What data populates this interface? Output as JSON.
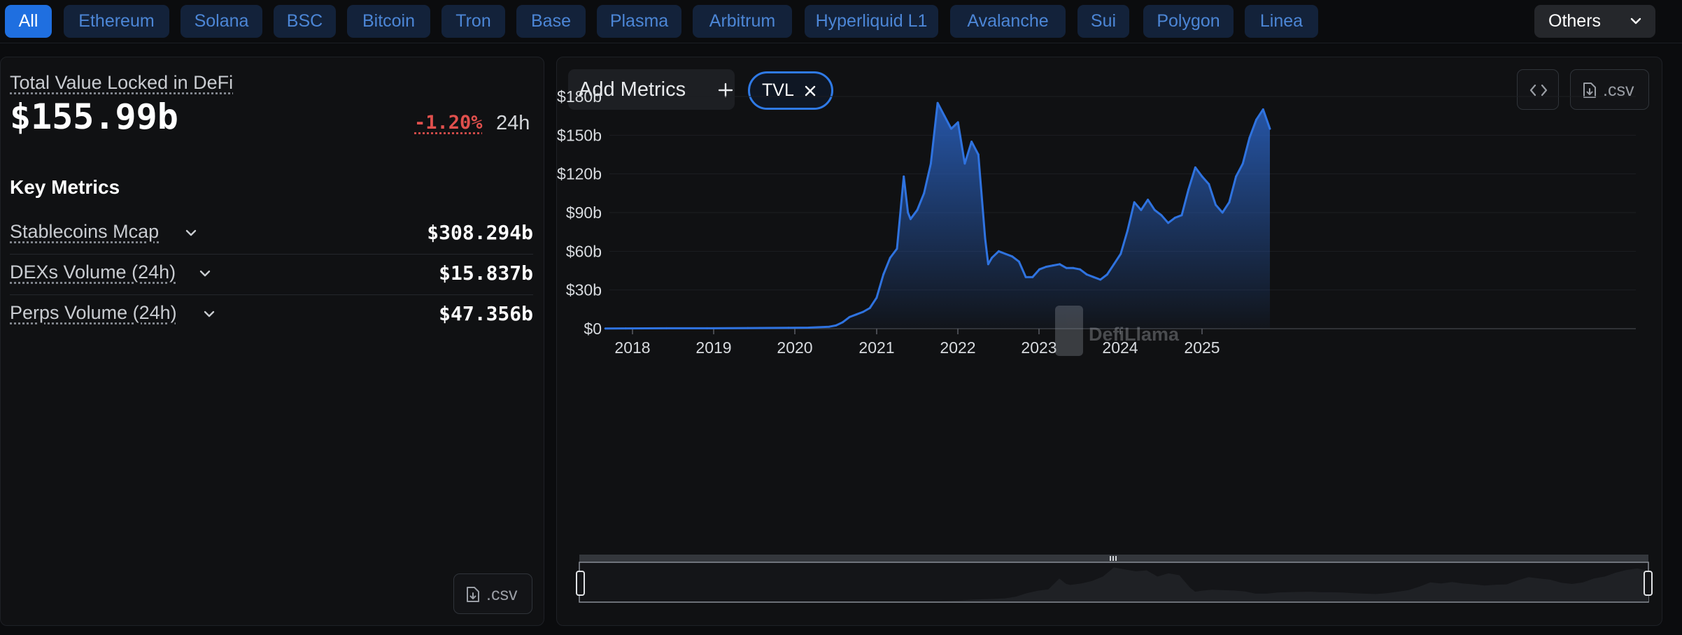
{
  "chain_tabs": [
    {
      "label": "All",
      "active": true
    },
    {
      "label": "Ethereum"
    },
    {
      "label": "Solana"
    },
    {
      "label": "BSC"
    },
    {
      "label": "Bitcoin"
    },
    {
      "label": "Tron"
    },
    {
      "label": "Base"
    },
    {
      "label": "Plasma"
    },
    {
      "label": "Arbitrum"
    },
    {
      "label": "Hyperliquid L1"
    },
    {
      "label": "Avalanche"
    },
    {
      "label": "Sui"
    },
    {
      "label": "Polygon"
    },
    {
      "label": "Linea"
    }
  ],
  "others_label": "Others",
  "summary": {
    "title": "Total Value Locked in DeFi",
    "value": "$155.99b",
    "change": "-1.20%",
    "period": "24h",
    "key_metrics_heading": "Key Metrics",
    "metrics": [
      {
        "label": "Stablecoins Mcap",
        "value": "$308.294b"
      },
      {
        "label": "DEXs Volume (24h)",
        "value": "$15.837b"
      },
      {
        "label": "Perps Volume (24h)",
        "value": "$47.356b"
      }
    ],
    "csv_label": ".csv"
  },
  "chart_toolbar": {
    "add_metrics_label": "Add Metrics",
    "chip_label": "TVL",
    "csv_label": ".csv"
  },
  "colors": {
    "accent": "#1f6fe0",
    "line": "#2f73e0",
    "negative": "#e0504d"
  },
  "chart_data": {
    "type": "area",
    "series": [
      {
        "name": "TVL"
      }
    ],
    "watermark": "DefiLlama",
    "x": [
      "2017-09",
      "2017-12",
      "2018-06",
      "2018-12",
      "2019-06",
      "2019-12",
      "2020-03",
      "2020-06",
      "2020-07",
      "2020-08",
      "2020-09",
      "2020-10",
      "2020-11",
      "2020-12",
      "2021-01",
      "2021-02",
      "2021-03",
      "2021-04",
      "2021-05",
      "2021-05-20",
      "2021-06",
      "2021-07",
      "2021-08",
      "2021-09",
      "2021-10",
      "2021-11",
      "2021-12",
      "2022-01",
      "2022-02",
      "2022-03",
      "2022-04",
      "2022-05",
      "2022-05-15",
      "2022-06",
      "2022-07",
      "2022-08",
      "2022-09",
      "2022-10",
      "2022-11",
      "2022-12",
      "2023-01",
      "2023-02",
      "2023-03",
      "2023-04",
      "2023-05",
      "2023-06",
      "2023-07",
      "2023-08",
      "2023-09",
      "2023-10",
      "2023-11",
      "2023-12",
      "2024-01",
      "2024-02",
      "2024-03",
      "2024-04",
      "2024-05",
      "2024-06",
      "2024-07",
      "2024-08",
      "2024-09",
      "2024-10",
      "2024-11",
      "2024-12",
      "2025-01",
      "2025-02",
      "2025-03",
      "2025-04",
      "2025-05",
      "2025-06",
      "2025-07",
      "2025-08",
      "2025-09",
      "2025-10",
      "2025-11"
    ],
    "values": [
      0.1,
      0.2,
      0.3,
      0.3,
      0.5,
      0.7,
      0.8,
      1.5,
      2.5,
      5,
      9,
      11,
      13,
      16,
      24,
      42,
      55,
      62,
      118,
      90,
      85,
      92,
      105,
      128,
      175,
      165,
      155,
      160,
      128,
      145,
      135,
      70,
      50,
      55,
      60,
      58,
      56,
      52,
      40,
      40,
      46,
      48,
      49,
      50,
      47,
      47,
      46,
      42,
      40,
      38,
      42,
      50,
      58,
      76,
      98,
      92,
      100,
      92,
      88,
      82,
      86,
      88,
      108,
      125,
      118,
      112,
      96,
      90,
      98,
      118,
      128,
      148,
      162,
      170,
      155
    ],
    "x_ticks": [
      "2018",
      "2019",
      "2020",
      "2021",
      "2022",
      "2023",
      "2024",
      "2025"
    ],
    "y_ticks": [
      "$0",
      "$30b",
      "$60b",
      "$90b",
      "$120b",
      "$150b",
      "$180b"
    ],
    "ylim": [
      0,
      180
    ],
    "grid": true
  }
}
